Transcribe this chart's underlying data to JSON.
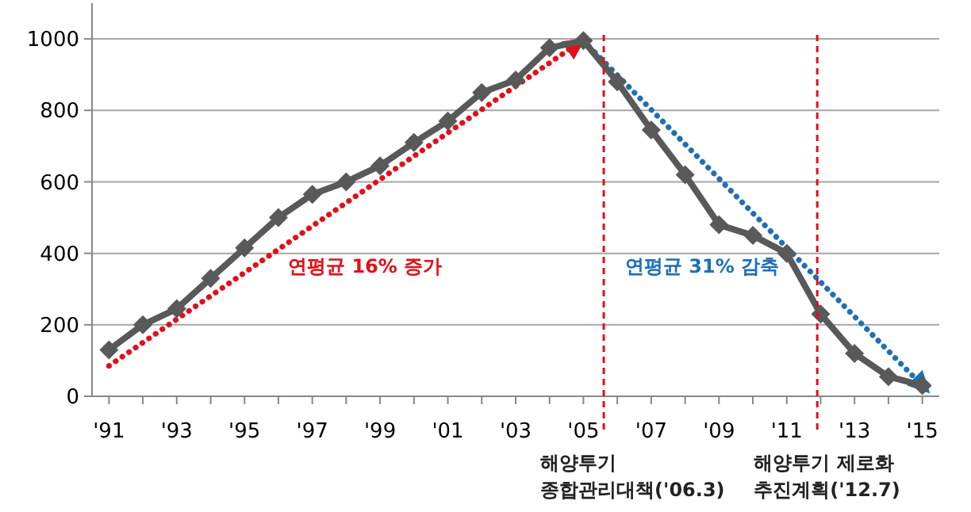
{
  "chart_data": {
    "type": "line",
    "x": [
      1991,
      1992,
      1993,
      1994,
      1995,
      1996,
      1997,
      1998,
      1999,
      2000,
      2001,
      2002,
      2003,
      2004,
      2005,
      2006,
      2007,
      2008,
      2009,
      2010,
      2011,
      2012,
      2013,
      2014,
      2015
    ],
    "series": [
      {
        "color": "#595959",
        "marker": "diamond",
        "values": [
          130,
          200,
          245,
          330,
          415,
          500,
          565,
          600,
          645,
          710,
          770,
          850,
          885,
          975,
          995,
          880,
          745,
          620,
          480,
          450,
          400,
          230,
          120,
          55,
          30
        ]
      },
      {
        "type": "line",
        "color": "#e0101a",
        "line_style": "dotted",
        "marker": "none",
        "x": [
          1991,
          2004.8
        ],
        "values": [
          85,
          985
        ]
      },
      {
        "type": "line",
        "color": "#1f6fb4",
        "line_style": "dotted",
        "marker": "none",
        "x": [
          2005,
          2015
        ],
        "values": [
          995,
          30
        ]
      }
    ],
    "xlim": [
      1990.5,
      2015.5
    ],
    "ylim": [
      0,
      1100
    ],
    "xticks": [
      {
        "value": 1991,
        "label": "'91"
      },
      {
        "value": 1992,
        "label": null
      },
      {
        "value": 1993,
        "label": "'93"
      },
      {
        "value": 1994,
        "label": null
      },
      {
        "value": 1995,
        "label": "'95"
      },
      {
        "value": 1996,
        "label": null
      },
      {
        "value": 1997,
        "label": "'97"
      },
      {
        "value": 1998,
        "label": null
      },
      {
        "value": 1999,
        "label": "'99"
      },
      {
        "value": 2000,
        "label": null
      },
      {
        "value": 2001,
        "label": "'01"
      },
      {
        "value": 2002,
        "label": null
      },
      {
        "value": 2003,
        "label": "'03"
      },
      {
        "value": 2004,
        "label": null
      },
      {
        "value": 2005,
        "label": "'05"
      },
      {
        "value": 2006,
        "label": null
      },
      {
        "value": 2007,
        "label": "'07"
      },
      {
        "value": 2008,
        "label": null
      },
      {
        "value": 2009,
        "label": "'09"
      },
      {
        "value": 2010,
        "label": null
      },
      {
        "value": 2011,
        "label": "'11"
      },
      {
        "value": 2012,
        "label": null
      },
      {
        "value": 2013,
        "label": "'13"
      },
      {
        "value": 2014,
        "label": null
      },
      {
        "value": 2015,
        "label": "'15"
      }
    ],
    "yticks": [
      0,
      200,
      400,
      600,
      800,
      1000
    ],
    "grid": "y",
    "ref_lines": [
      {
        "axis": "x",
        "value": 2005.6,
        "label": "해양투기\n종합관리대책('06.3)",
        "color": "#e0101a",
        "line_style": "dashed"
      },
      {
        "axis": "x",
        "value": 2011.9,
        "label": "해양투기 제로화\n추진계획('12.7)",
        "color": "#e0101a",
        "line_style": "dashed"
      }
    ],
    "annotations": [
      "연평균 16% 증가",
      "연평균 31% 감축"
    ]
  }
}
